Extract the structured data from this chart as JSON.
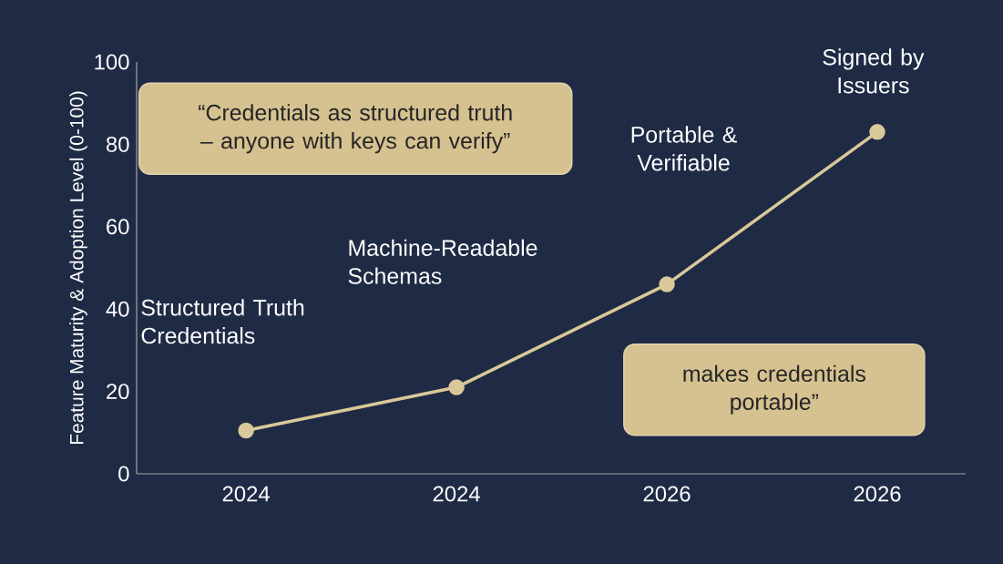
{
  "chart_data": {
    "type": "line",
    "ylabel": "Feature Maturity & Adoption Level (0-100)",
    "categories": [
      "2024",
      "2024",
      "2026",
      "2026"
    ],
    "values": [
      10.5,
      21,
      46,
      83
    ],
    "color": "#d9c899",
    "ylim": [
      0,
      100
    ],
    "yticks": [
      0,
      20,
      40,
      60,
      80,
      100
    ],
    "marker": "circle",
    "line_style": "solid",
    "annotations": [
      "Structured Truth Credentials",
      "Machine-Readable Schemas",
      "Portable & Verifiable",
      "Signed by Issuers",
      "“Credentials as structured truth – anyone with keys can verify”",
      "makes credentials portable”"
    ]
  }
}
